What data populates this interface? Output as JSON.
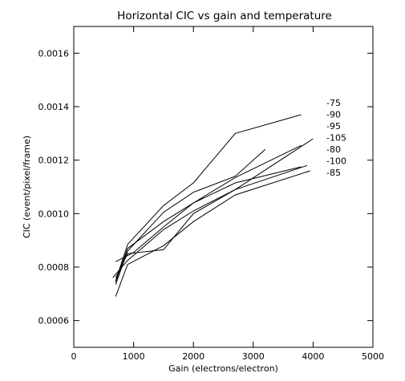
{
  "chart_data": {
    "type": "line",
    "title": "Horizontal CIC vs gain and temperature",
    "xlabel": "Gain (electrons/electron)",
    "ylabel": "CIC (event/pixel/frame)",
    "xlim": [
      0,
      5000
    ],
    "ylim": [
      0.0005,
      0.0017
    ],
    "xticks": [
      0,
      1000,
      2000,
      3000,
      4000,
      5000
    ],
    "yticks": [
      0.0006,
      0.0008,
      0.001,
      0.0012,
      0.0014,
      0.0016
    ],
    "ytick_labels": [
      "0.0006",
      "0.0008",
      "0.0010",
      "0.0012",
      "0.0014",
      "0.0016"
    ],
    "legend_position": "right",
    "grid": false,
    "series": [
      {
        "name": "-75",
        "x": [
          700,
          900,
          1500,
          2000,
          2700,
          3800
        ],
        "y": [
          0.000748,
          0.000885,
          0.00103,
          0.001115,
          0.0013,
          0.00137
        ]
      },
      {
        "name": "-90",
        "x": [
          700,
          900,
          1500,
          2000,
          2700,
          3200
        ],
        "y": [
          0.000735,
          0.00086,
          0.001005,
          0.00108,
          0.00114,
          0.00124
        ]
      },
      {
        "name": "-95",
        "x": [
          700,
          900,
          1500,
          2000,
          2700,
          3800
        ],
        "y": [
          0.000745,
          0.00087,
          0.00097,
          0.00104,
          0.001135,
          0.001255
        ]
      },
      {
        "name": "-105",
        "x": [
          700,
          1000,
          1500,
          2000,
          2700,
          3800
        ],
        "y": [
          0.00082,
          0.000855,
          0.00095,
          0.00104,
          0.001115,
          0.001175
        ]
      },
      {
        "name": "-80",
        "x": [
          700,
          900,
          1500,
          2000,
          2700,
          3900
        ],
        "y": [
          0.00076,
          0.00085,
          0.000865,
          0.001,
          0.00109,
          0.00118
        ]
      },
      {
        "name": "-100",
        "x": [
          650,
          900,
          1500,
          2000,
          2700,
          4000
        ],
        "y": [
          0.00076,
          0.000825,
          0.00094,
          0.00101,
          0.00109,
          0.00128
        ]
      },
      {
        "name": "-85",
        "x": [
          700,
          900,
          1500,
          2000,
          2700,
          3950
        ],
        "y": [
          0.00069,
          0.00081,
          0.00088,
          0.00097,
          0.00107,
          0.00116
        ]
      }
    ]
  }
}
